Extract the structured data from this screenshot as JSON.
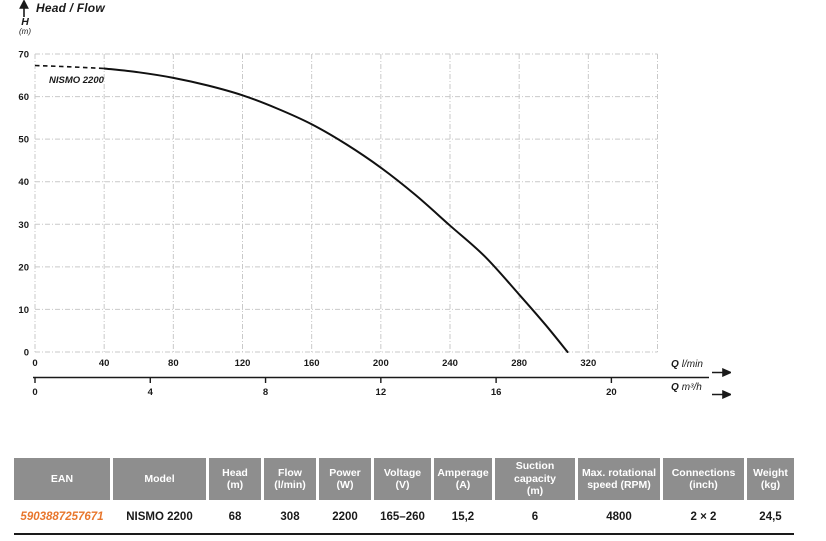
{
  "colors": {
    "ink": "#1a1a1a",
    "grid_gray": "#c9c9c9",
    "header_gray": "#8e8e8e",
    "accent_orange": "#e8762c"
  },
  "chart_data": {
    "type": "line",
    "title": "Head / Flow",
    "ylabel": "H",
    "ylabel_unit": "(m)",
    "xlabel_primary": {
      "symbol": "Q",
      "unit": "l/min"
    },
    "xlabel_secondary": {
      "symbol": "Q",
      "unit": "m³/h"
    },
    "xlim": [
      0,
      360
    ],
    "ylim": [
      0,
      70
    ],
    "x_grid_step": 40,
    "y_grid_step": 10,
    "x_ticks_lmin": [
      0,
      40,
      80,
      120,
      160,
      200,
      240,
      280,
      320
    ],
    "x_ticks_m3h": [
      0,
      4,
      8,
      12,
      16,
      20
    ],
    "y_ticks": [
      0,
      10,
      20,
      30,
      40,
      50,
      60,
      70
    ],
    "grid": "dash-dot",
    "legend_position": "none",
    "series": [
      {
        "name": "NISMO 2200",
        "dashed_until_x": 38,
        "x": [
          0,
          20,
          40,
          60,
          80,
          100,
          120,
          140,
          160,
          180,
          200,
          220,
          240,
          260,
          280,
          295,
          308
        ],
        "y": [
          67.3,
          67.0,
          66.6,
          65.7,
          64.4,
          62.6,
          60.3,
          57.2,
          53.5,
          48.8,
          43.3,
          36.9,
          29.7,
          22.5,
          13.5,
          6.5,
          0
        ]
      }
    ]
  },
  "table": {
    "headers": [
      {
        "l1": "EAN",
        "l2": ""
      },
      {
        "l1": "Model",
        "l2": ""
      },
      {
        "l1": "Head",
        "l2": "(m)"
      },
      {
        "l1": "Flow",
        "l2": "(l/min)"
      },
      {
        "l1": "Power",
        "l2": "(W)"
      },
      {
        "l1": "Voltage",
        "l2": "(V)"
      },
      {
        "l1": "Amperage",
        "l2": "(A)"
      },
      {
        "l1": "Suction capacity",
        "l2": "(m)"
      },
      {
        "l1": "Max. rotational",
        "l2": "speed (RPM)"
      },
      {
        "l1": "Connections",
        "l2": "(inch)"
      },
      {
        "l1": "Weight",
        "l2": "(kg)"
      }
    ],
    "row": [
      "5903887257671",
      "NISMO 2200",
      "68",
      "308",
      "2200",
      "165–260",
      "15,2",
      "6",
      "4800",
      "2 × 2",
      "24,5"
    ]
  }
}
